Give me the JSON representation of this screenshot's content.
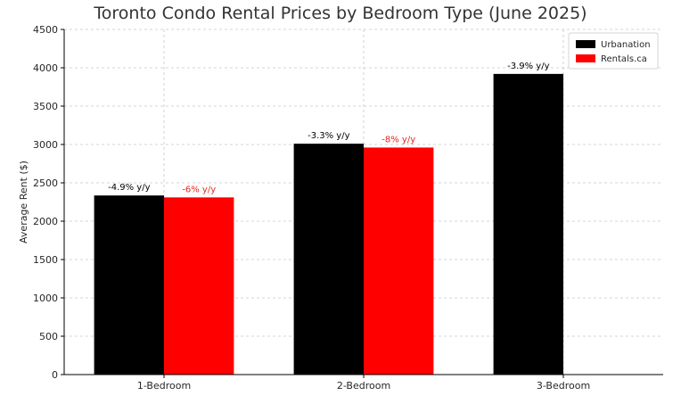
{
  "chart_data": {
    "type": "bar",
    "title": "Toronto Condo Rental Prices by Bedroom Type (June 2025)",
    "xlabel": "",
    "ylabel": "Average Rent ($)",
    "categories": [
      "1-Bedroom",
      "2-Bedroom",
      "3-Bedroom"
    ],
    "ylim": [
      0,
      4500
    ],
    "yticks": [
      0,
      500,
      1000,
      1500,
      2000,
      2500,
      3000,
      3500,
      4000,
      4500
    ],
    "grid": true,
    "legend_position": "top-right",
    "series": [
      {
        "name": "Urbanation",
        "color": "#000000",
        "label_color": "#000000",
        "values": [
          2335,
          3010,
          3920
        ],
        "labels": [
          "-4.9% y/y",
          "-3.3% y/y",
          "-3.9% y/y"
        ]
      },
      {
        "name": "Rentals.ca",
        "color": "#ff0000",
        "label_color": "#e8261c",
        "values": [
          2310,
          2960,
          null
        ],
        "labels": [
          "-6% y/y",
          "-8% y/y",
          null
        ]
      }
    ]
  }
}
